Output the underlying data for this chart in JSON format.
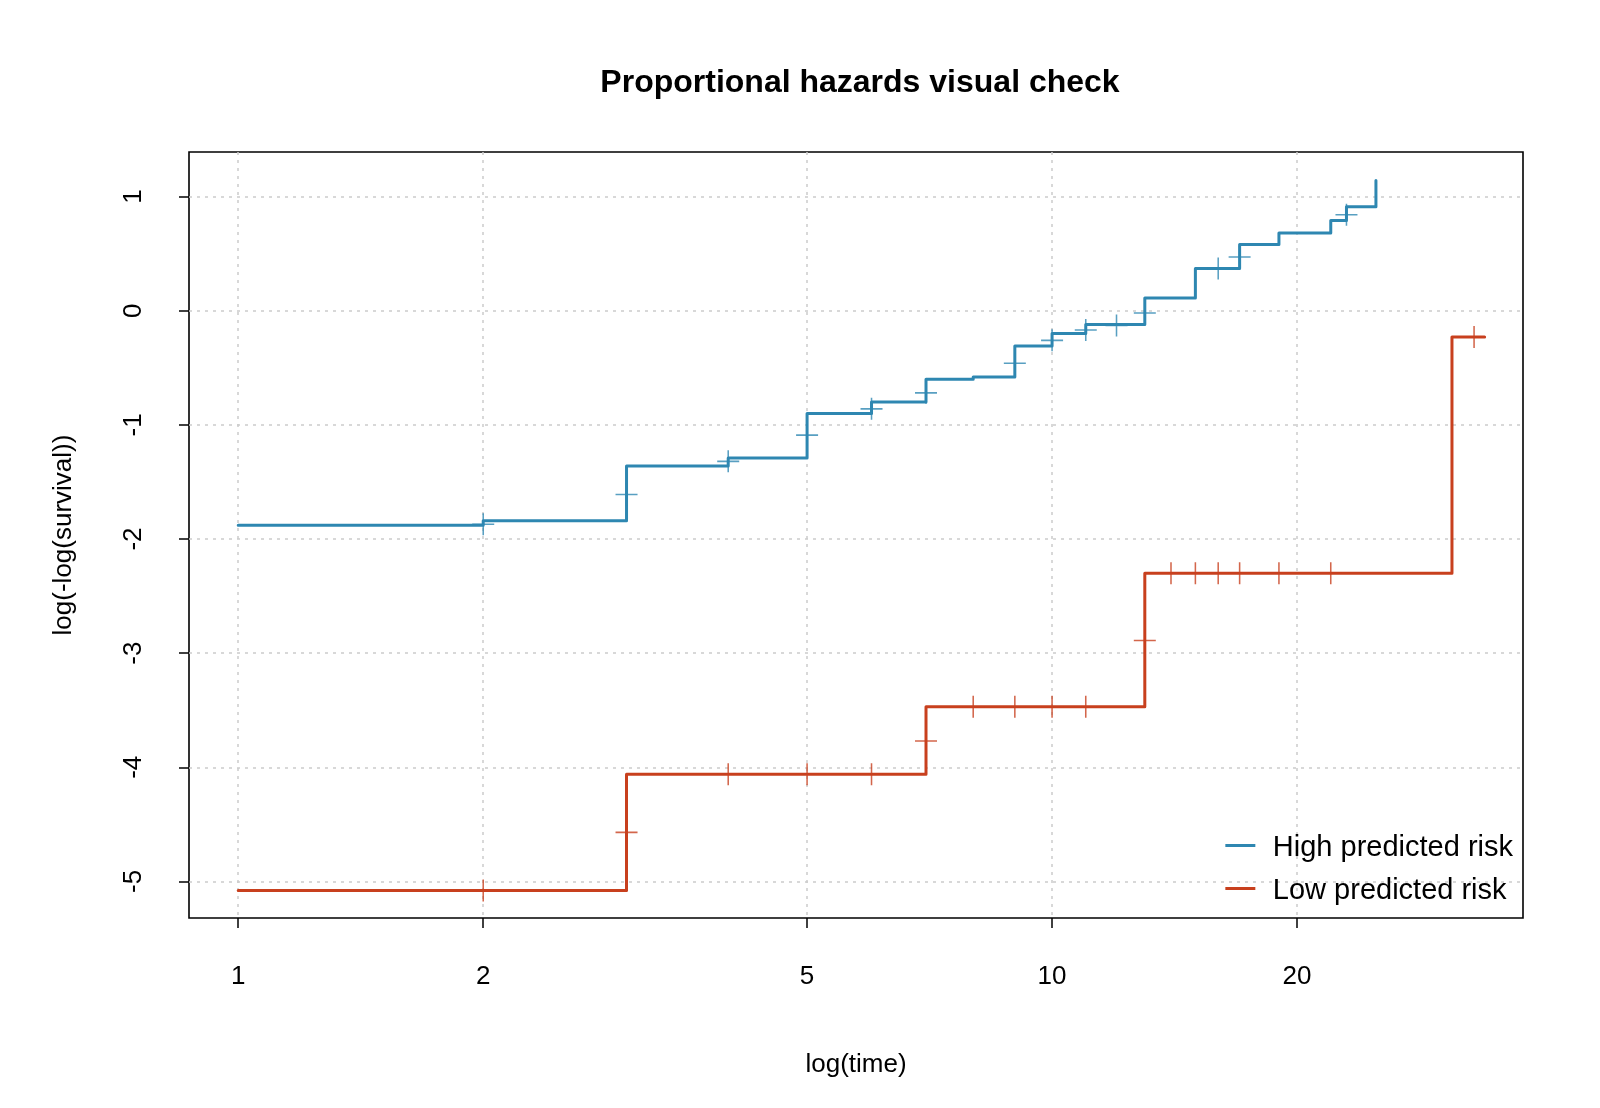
{
  "chart_data": {
    "type": "step",
    "title": "Proportional hazards visual check",
    "xlabel": "log(time)",
    "ylabel": "log(-log(survival))",
    "log": "x",
    "xlim": [
      0.87,
      37.9
    ],
    "ylim": [
      -5.32,
      1.39
    ],
    "xticks": [
      1,
      2,
      5,
      10,
      20
    ],
    "yticks": [
      -5,
      -4,
      -3,
      -2,
      -1,
      0,
      1
    ],
    "grid": true,
    "legend": "bottom right",
    "series": [
      {
        "name": "High predicted risk",
        "color": "#2e87b1",
        "x": [
          1,
          2,
          3,
          4,
          5,
          6,
          7,
          8,
          9,
          10,
          11,
          13,
          15,
          17,
          19,
          22,
          23,
          25,
          25
        ],
        "values": [
          -1.88,
          -1.84,
          -1.36,
          -1.29,
          -0.9,
          -0.8,
          -0.6,
          -0.58,
          -0.31,
          -0.2,
          -0.12,
          0.11,
          0.37,
          0.58,
          0.68,
          0.79,
          0.91,
          0.91,
          1.14
        ]
      },
      {
        "name": "Low predicted risk",
        "color": "#c8401e",
        "x": [
          1,
          3,
          7,
          13,
          31,
          34
        ],
        "values": [
          -5.08,
          -4.06,
          -3.47,
          -2.3,
          -0.23,
          -0.23
        ]
      },
      {
        "type": "scatter",
        "marker": "cross",
        "color": "#2e87b1",
        "x": [
          2,
          3,
          4,
          5,
          6,
          7,
          9,
          10,
          11,
          12,
          13,
          16,
          17,
          23
        ],
        "values": [
          -1.87,
          -1.61,
          -1.32,
          -1.09,
          -0.86,
          -0.72,
          -0.46,
          -0.26,
          -0.17,
          -0.13,
          -0.02,
          0.37,
          0.47,
          0.84
        ]
      },
      {
        "type": "scatter",
        "marker": "cross",
        "color": "#c8401e",
        "x": [
          2,
          3,
          4,
          5,
          6,
          7,
          8,
          9,
          10,
          11,
          13,
          14,
          15,
          16,
          17,
          19,
          22,
          33
        ],
        "values": [
          -5.08,
          -4.57,
          -4.06,
          -4.06,
          -4.06,
          -3.77,
          -3.47,
          -3.47,
          -3.47,
          -3.47,
          -2.89,
          -2.3,
          -2.3,
          -2.3,
          -2.3,
          -2.3,
          -2.3,
          -0.23
        ]
      }
    ]
  }
}
